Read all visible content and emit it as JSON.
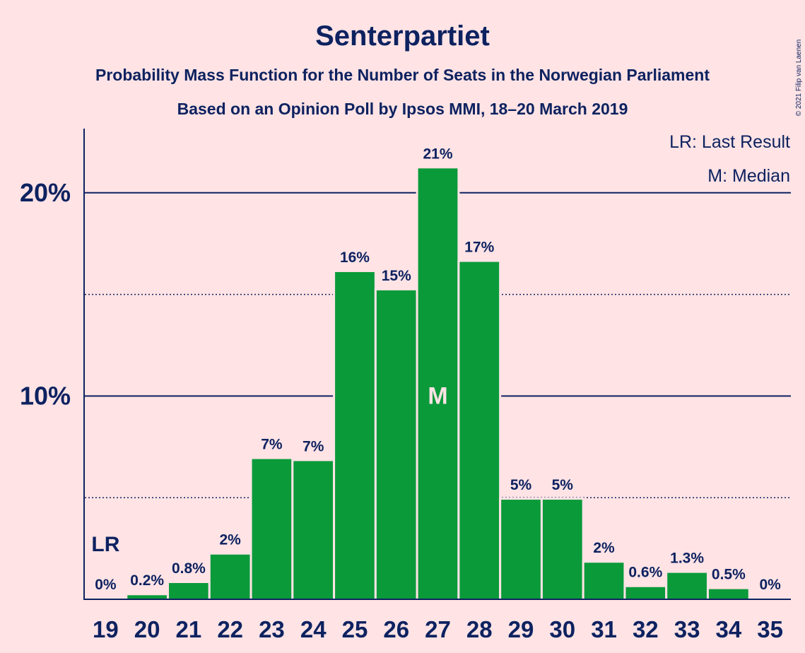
{
  "colors": {
    "background": "#ffe3e5",
    "bar": "#0a9a3a",
    "text": "#0d2260"
  },
  "copyright": "© 2021 Filip van Laenen",
  "chart_data": {
    "type": "bar",
    "title": "Senterpartiet",
    "subtitle": "Probability Mass Function for the Number of Seats in the Norwegian Parliament",
    "subtitle2": "Based on an Opinion Poll by Ipsos MMI, 18–20 March 2019",
    "categories": [
      "19",
      "20",
      "21",
      "22",
      "23",
      "24",
      "25",
      "26",
      "27",
      "28",
      "29",
      "30",
      "31",
      "32",
      "33",
      "34",
      "35"
    ],
    "values": [
      0,
      0.2,
      0.8,
      2.2,
      6.9,
      6.8,
      16.1,
      15.2,
      21.2,
      16.6,
      4.9,
      4.9,
      1.8,
      0.6,
      1.3,
      0.5,
      0
    ],
    "value_labels": [
      "0%",
      "0.2%",
      "0.8%",
      "2%",
      "7%",
      "7%",
      "16%",
      "15%",
      "21%",
      "17%",
      "5%",
      "5%",
      "2%",
      "0.6%",
      "1.3%",
      "0.5%",
      "0%"
    ],
    "ylim": [
      0,
      23
    ],
    "major_ticks": [
      10,
      20
    ],
    "major_tick_labels": [
      "10%",
      "20%"
    ],
    "minor_gridlines": [
      5,
      15
    ],
    "last_result_category": "19",
    "last_result_marker": "LR",
    "median_category": "27",
    "median_marker": "M",
    "legend": {
      "position": "top-right",
      "items": [
        "LR: Last Result",
        "M: Median"
      ]
    }
  }
}
